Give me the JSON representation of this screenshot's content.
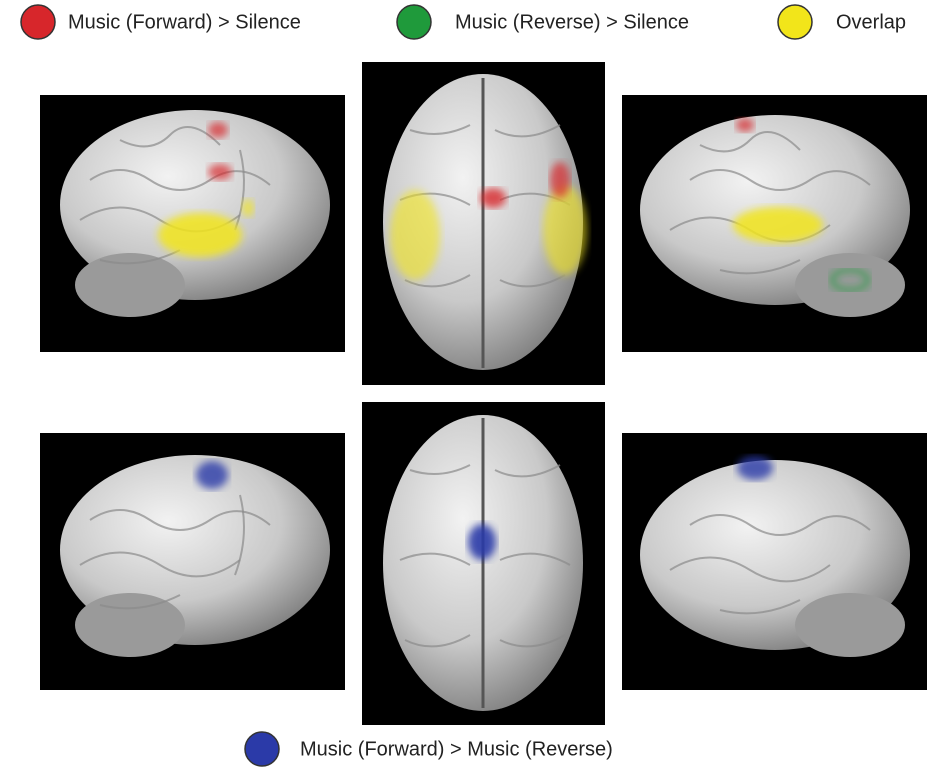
{
  "legend": [
    {
      "label": "Music (Forward) > Silence",
      "color": "#d7262b"
    },
    {
      "label": "Music (Reverse) > Silence",
      "color": "#1f9a3b"
    },
    {
      "label": "Overlap",
      "color": "#f2e51a"
    }
  ],
  "bottom_legend": {
    "label": "Music (Forward) > Music (Reverse)",
    "color": "#2b3aa8"
  }
}
